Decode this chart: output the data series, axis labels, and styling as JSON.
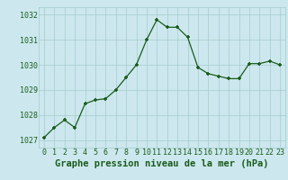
{
  "x": [
    0,
    1,
    2,
    3,
    4,
    5,
    6,
    7,
    8,
    9,
    10,
    11,
    12,
    13,
    14,
    15,
    16,
    17,
    18,
    19,
    20,
    21,
    22,
    23
  ],
  "y": [
    1027.1,
    1027.5,
    1027.8,
    1027.5,
    1028.45,
    1028.6,
    1028.65,
    1029.0,
    1029.5,
    1030.0,
    1031.0,
    1031.8,
    1031.5,
    1031.5,
    1031.1,
    1029.9,
    1029.65,
    1029.55,
    1029.45,
    1029.45,
    1030.05,
    1030.05,
    1030.15,
    1030.0
  ],
  "line_color": "#1a5c1a",
  "marker_color": "#1a5c1a",
  "bg_color": "#cce8ee",
  "grid_color": "#aacfcf",
  "title": "Graphe pression niveau de la mer (hPa)",
  "ylabel_values": [
    1027,
    1028,
    1029,
    1030,
    1031,
    1032
  ],
  "xlim": [
    -0.5,
    23.5
  ],
  "ylim": [
    1026.7,
    1032.3
  ],
  "tick_fontsize": 6,
  "title_fontsize": 7.5
}
